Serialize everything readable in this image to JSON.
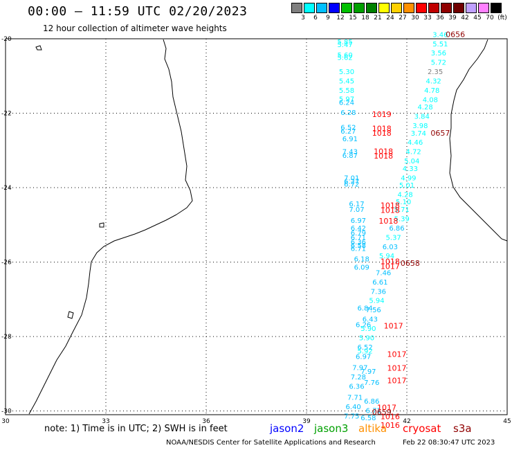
{
  "title": "00:00 – 11:59 UTC 02/20/2023",
  "subtitle": "12 hour collection of altimeter wave heights",
  "legend": {
    "labels": [
      "3",
      "6",
      "9",
      "12",
      "15",
      "18",
      "21",
      "24",
      "27",
      "30",
      "33",
      "36",
      "39",
      "42",
      "45",
      "70",
      "(ft)"
    ],
    "colors": [
      "#7f7f7f",
      "#00ffff",
      "#00bfff",
      "#0000ff",
      "#00c000",
      "#00a000",
      "#008000",
      "#ffff00",
      "#ffd000",
      "#ff9000",
      "#ff0000",
      "#c00000",
      "#900000",
      "#700000",
      "#c0a0ff",
      "#ff80ff",
      "#000000"
    ]
  },
  "axes": {
    "lon_labels": [
      "30",
      "33",
      "36",
      "39",
      "42",
      "45"
    ],
    "lat_labels": [
      "-20",
      "-22",
      "-24",
      "-26",
      "-28",
      "-30"
    ]
  },
  "wave_points": [
    {
      "v": "3.46",
      "lon": 43.0,
      "lat": -19.95,
      "c": "#00ffff"
    },
    {
      "v": "5.51",
      "lon": 43.0,
      "lat": -20.2,
      "c": "#00ffff"
    },
    {
      "v": "3.56",
      "lon": 42.95,
      "lat": -20.45,
      "c": "#00ffff"
    },
    {
      "v": "5.72",
      "lon": 42.95,
      "lat": -20.7,
      "c": "#00ffff"
    },
    {
      "v": "2.35",
      "lon": 42.85,
      "lat": -20.95,
      "c": "#7f7f7f"
    },
    {
      "v": "4.32",
      "lon": 42.8,
      "lat": -21.2,
      "c": "#00ffff"
    },
    {
      "v": "4.78",
      "lon": 42.75,
      "lat": -21.45,
      "c": "#00ffff"
    },
    {
      "v": "4.08",
      "lon": 42.7,
      "lat": -21.7,
      "c": "#00ffff"
    },
    {
      "v": "4.28",
      "lon": 42.55,
      "lat": -21.9,
      "c": "#00ffff"
    },
    {
      "v": "3.84",
      "lon": 42.45,
      "lat": -22.15,
      "c": "#00ffff"
    },
    {
      "v": "3.98",
      "lon": 42.4,
      "lat": -22.4,
      "c": "#00ffff"
    },
    {
      "v": "3.74",
      "lon": 42.35,
      "lat": -22.6,
      "c": "#00ffff"
    },
    {
      "v": "4.46",
      "lon": 42.25,
      "lat": -22.85,
      "c": "#00ffff"
    },
    {
      "v": "4.72",
      "lon": 42.2,
      "lat": -23.1,
      "c": "#00ffff"
    },
    {
      "v": "5.04",
      "lon": 42.15,
      "lat": -23.35,
      "c": "#00ffff"
    },
    {
      "v": "4.33",
      "lon": 42.1,
      "lat": -23.55,
      "c": "#00ffff"
    },
    {
      "v": "4.99",
      "lon": 42.05,
      "lat": -23.8,
      "c": "#00ffff"
    },
    {
      "v": "5.01",
      "lon": 42.0,
      "lat": -24.0,
      "c": "#00ffff"
    },
    {
      "v": "4.28",
      "lon": 41.95,
      "lat": -24.25,
      "c": "#00ffff"
    },
    {
      "v": "5.10",
      "lon": 41.9,
      "lat": -24.45,
      "c": "#00ffff"
    },
    {
      "v": "5.71",
      "lon": 41.85,
      "lat": -24.65,
      "c": "#00ffff"
    },
    {
      "v": "5.39",
      "lon": 41.85,
      "lat": -24.9,
      "c": "#00ffff"
    },
    {
      "v": "6.86",
      "lon": 41.7,
      "lat": -25.15,
      "c": "#00bfff"
    },
    {
      "v": "5.37",
      "lon": 41.6,
      "lat": -25.4,
      "c": "#00ffff"
    },
    {
      "v": "6.03",
      "lon": 41.5,
      "lat": -25.65,
      "c": "#00bfff"
    },
    {
      "v": "5.94",
      "lon": 41.4,
      "lat": -25.9,
      "c": "#00ffff"
    },
    {
      "v": "7.46",
      "lon": 41.3,
      "lat": -26.35,
      "c": "#00bfff"
    },
    {
      "v": "6.61",
      "lon": 41.2,
      "lat": -26.6,
      "c": "#00bfff"
    },
    {
      "v": "7.36",
      "lon": 41.15,
      "lat": -26.85,
      "c": "#00bfff"
    },
    {
      "v": "5.94",
      "lon": 41.1,
      "lat": -27.1,
      "c": "#00ffff"
    },
    {
      "v": "7.56",
      "lon": 41.0,
      "lat": -27.35,
      "c": "#00bfff"
    },
    {
      "v": "6.84",
      "lon": 40.75,
      "lat": -27.3,
      "c": "#00bfff"
    },
    {
      "v": "6.43",
      "lon": 40.9,
      "lat": -27.6,
      "c": "#00bfff"
    },
    {
      "v": "6.26",
      "lon": 40.7,
      "lat": -27.75,
      "c": "#00bfff"
    },
    {
      "v": "5.90",
      "lon": 40.85,
      "lat": -27.85,
      "c": "#00ffff"
    },
    {
      "v": "5.90",
      "lon": 40.8,
      "lat": -28.1,
      "c": "#00ffff"
    },
    {
      "v": "6.52",
      "lon": 40.75,
      "lat": -28.35,
      "c": "#00bfff"
    },
    {
      "v": "5.92",
      "lon": 40.75,
      "lat": -28.45,
      "c": "#00ffff"
    },
    {
      "v": "6.97",
      "lon": 40.7,
      "lat": -28.6,
      "c": "#00bfff"
    },
    {
      "v": "7.97",
      "lon": 40.6,
      "lat": -28.9,
      "c": "#00bfff"
    },
    {
      "v": "7.97",
      "lon": 40.85,
      "lat": -29.0,
      "c": "#00bfff"
    },
    {
      "v": "7.28",
      "lon": 40.55,
      "lat": -29.15,
      "c": "#00bfff"
    },
    {
      "v": "7.76",
      "lon": 40.95,
      "lat": -29.3,
      "c": "#00bfff"
    },
    {
      "v": "6.36",
      "lon": 40.5,
      "lat": -29.4,
      "c": "#00bfff"
    },
    {
      "v": "7.71",
      "lon": 40.45,
      "lat": -29.7,
      "c": "#00bfff"
    },
    {
      "v": "6.86",
      "lon": 40.95,
      "lat": -29.8,
      "c": "#00bfff"
    },
    {
      "v": "6.40",
      "lon": 40.4,
      "lat": -29.95,
      "c": "#00bfff"
    },
    {
      "v": "6.71",
      "lon": 41.0,
      "lat": -30.05,
      "c": "#00bfff"
    },
    {
      "v": "7.75",
      "lon": 40.35,
      "lat": -30.2,
      "c": "#00bfff"
    },
    {
      "v": "6.58",
      "lon": 40.85,
      "lat": -30.25,
      "c": "#00bfff"
    },
    {
      "v": "5.85",
      "lon": 40.15,
      "lat": -20.15,
      "c": "#00ffff"
    },
    {
      "v": "5.47",
      "lon": 40.15,
      "lat": -20.22,
      "c": "#00ffff"
    },
    {
      "v": "5.60",
      "lon": 40.15,
      "lat": -20.5,
      "c": "#00ffff"
    },
    {
      "v": "5.62",
      "lon": 40.15,
      "lat": -20.57,
      "c": "#00ffff"
    },
    {
      "v": "5.30",
      "lon": 40.2,
      "lat": -20.95,
      "c": "#00ffff"
    },
    {
      "v": "5.45",
      "lon": 40.2,
      "lat": -21.2,
      "c": "#00ffff"
    },
    {
      "v": "5.58",
      "lon": 40.2,
      "lat": -21.45,
      "c": "#00ffff"
    },
    {
      "v": "5.97",
      "lon": 40.2,
      "lat": -21.68,
      "c": "#00ffff"
    },
    {
      "v": "6.24",
      "lon": 40.2,
      "lat": -21.78,
      "c": "#00bfff"
    },
    {
      "v": "6.28",
      "lon": 40.25,
      "lat": -22.05,
      "c": "#00bfff"
    },
    {
      "v": "6.52",
      "lon": 40.25,
      "lat": -22.45,
      "c": "#00bfff"
    },
    {
      "v": "6.27",
      "lon": 40.25,
      "lat": -22.55,
      "c": "#00bfff"
    },
    {
      "v": "6.91",
      "lon": 40.3,
      "lat": -22.75,
      "c": "#00bfff"
    },
    {
      "v": "7.43",
      "lon": 40.3,
      "lat": -23.1,
      "c": "#00bfff"
    },
    {
      "v": "6.87",
      "lon": 40.3,
      "lat": -23.2,
      "c": "#00bfff"
    },
    {
      "v": "7.01",
      "lon": 40.35,
      "lat": -23.8,
      "c": "#00bfff"
    },
    {
      "v": "6.27",
      "lon": 40.35,
      "lat": -23.9,
      "c": "#00bfff"
    },
    {
      "v": "6.72",
      "lon": 40.35,
      "lat": -23.97,
      "c": "#00bfff"
    },
    {
      "v": "6.17",
      "lon": 40.5,
      "lat": -24.5,
      "c": "#00bfff"
    },
    {
      "v": "7.07",
      "lon": 40.5,
      "lat": -24.65,
      "c": "#00bfff"
    },
    {
      "v": "6.97",
      "lon": 40.55,
      "lat": -24.95,
      "c": "#00bfff"
    },
    {
      "v": "6.42",
      "lon": 40.55,
      "lat": -25.15,
      "c": "#00bfff"
    },
    {
      "v": "6.79",
      "lon": 40.55,
      "lat": -25.28,
      "c": "#00bfff"
    },
    {
      "v": "6.71",
      "lon": 40.55,
      "lat": -25.4,
      "c": "#00bfff"
    },
    {
      "v": "6.36",
      "lon": 40.55,
      "lat": -25.52,
      "c": "#00bfff"
    },
    {
      "v": "6.58",
      "lon": 40.55,
      "lat": -25.62,
      "c": "#00bfff"
    },
    {
      "v": "6.71",
      "lon": 40.55,
      "lat": -25.7,
      "c": "#00bfff"
    },
    {
      "v": "6.18",
      "lon": 40.65,
      "lat": -25.98,
      "c": "#00bfff"
    },
    {
      "v": "6.09",
      "lon": 40.65,
      "lat": -26.2,
      "c": "#00bfff"
    }
  ],
  "pass_times": [
    {
      "t": "0656",
      "lon": 43.45,
      "lat": -19.95,
      "c": "#900000"
    },
    {
      "t": "0657",
      "lon": 43.0,
      "lat": -22.6,
      "c": "#900000"
    },
    {
      "t": "0658",
      "lon": 42.1,
      "lat": -26.1,
      "c": "#900000"
    },
    {
      "t": "0659",
      "lon": 41.25,
      "lat": -30.1,
      "c": "#900000"
    },
    {
      "t": "1019",
      "lon": 41.25,
      "lat": -22.1,
      "c": "#ff0000"
    },
    {
      "t": "1018",
      "lon": 41.25,
      "lat": -22.48,
      "c": "#ff0000"
    },
    {
      "t": "1018",
      "lon": 41.25,
      "lat": -22.6,
      "c": "#ff0000"
    },
    {
      "t": "1018",
      "lon": 41.3,
      "lat": -23.1,
      "c": "#ff0000"
    },
    {
      "t": "1018",
      "lon": 41.3,
      "lat": -23.22,
      "c": "#ff0000"
    },
    {
      "t": "1018",
      "lon": 41.5,
      "lat": -24.55,
      "c": "#ff0000"
    },
    {
      "t": "1018",
      "lon": 41.5,
      "lat": -24.68,
      "c": "#ff0000"
    },
    {
      "t": "1018",
      "lon": 41.45,
      "lat": -24.97,
      "c": "#ff0000"
    },
    {
      "t": "1018",
      "lon": 41.5,
      "lat": -26.05,
      "c": "#ff0000"
    },
    {
      "t": "1017",
      "lon": 41.5,
      "lat": -26.18,
      "c": "#ff0000"
    },
    {
      "t": "1017",
      "lon": 41.6,
      "lat": -27.78,
      "c": "#ff0000"
    },
    {
      "t": "1017",
      "lon": 41.7,
      "lat": -28.55,
      "c": "#ff0000"
    },
    {
      "t": "1017",
      "lon": 41.7,
      "lat": -28.92,
      "c": "#ff0000"
    },
    {
      "t": "1017",
      "lon": 41.7,
      "lat": -29.25,
      "c": "#ff0000"
    },
    {
      "t": "1017",
      "lon": 41.4,
      "lat": -29.98,
      "c": "#ff0000"
    },
    {
      "t": "1016",
      "lon": 41.5,
      "lat": -30.22,
      "c": "#ff0000"
    },
    {
      "t": "1016",
      "lon": 41.5,
      "lat": -30.45,
      "c": "#ff0000"
    }
  ],
  "note": "note: 1) Time is in UTC; 2) SWH is in feet",
  "satellites": [
    {
      "name": "jason2",
      "color": "#0000ff"
    },
    {
      "name": "jason3",
      "color": "#00a000"
    },
    {
      "name": "altika",
      "color": "#ff9000"
    },
    {
      "name": "cryosat",
      "color": "#ff0000"
    },
    {
      "name": "s3a",
      "color": "#900000"
    }
  ],
  "credit": "NOAA/NESDIS Center for Satellite Applications and Research",
  "timestamp": "Feb 22 08:30:47 UTC 2023"
}
